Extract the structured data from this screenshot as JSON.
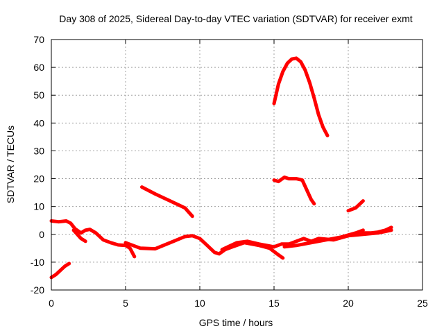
{
  "chart_data": {
    "type": "scatter",
    "title": "Day 308 of 2025, Sidereal Day-to-day VTEC variation (SDTVAR) for receiver exmt",
    "xlabel": "GPS time / hours",
    "ylabel": "SDTVAR / TECUs",
    "xlim": [
      0,
      25
    ],
    "ylim": [
      -20,
      70
    ],
    "xticks": [
      "0",
      "5",
      "10",
      "15",
      "20",
      "25"
    ],
    "yticks": [
      "-20",
      "-10",
      "0",
      "10",
      "20",
      "30",
      "40",
      "50",
      "60",
      "70"
    ],
    "grid": true,
    "marker_color": "#ff0000",
    "series": [
      {
        "name": "track-1",
        "x": [
          0,
          0.3,
          0.6,
          0.9,
          1.2
        ],
        "y": [
          -15.5,
          -14.5,
          -13,
          -11.5,
          -10.5
        ]
      },
      {
        "name": "track-2",
        "x": [
          0,
          0.5,
          1.0,
          1.3,
          1.6,
          2.0,
          2.3,
          2.6,
          3.0,
          3.5,
          4.0,
          4.5,
          5.0,
          5.3,
          5.6
        ],
        "y": [
          4.8,
          4.5,
          4.8,
          4.0,
          2.0,
          0.5,
          1.5,
          1.8,
          0.5,
          -2.0,
          -3.0,
          -3.8,
          -4.0,
          -5.0,
          -8.0
        ]
      },
      {
        "name": "track-3",
        "x": [
          1.5,
          2.0,
          2.3
        ],
        "y": [
          1.5,
          -1.5,
          -2.5
        ]
      },
      {
        "name": "track-4",
        "x": [
          5.0,
          6.0,
          7.0,
          8.0,
          9.0,
          9.5,
          10.0,
          10.5,
          11.0,
          11.3,
          11.7,
          12.2,
          13.0,
          14.0,
          14.7,
          15.2,
          15.6
        ],
        "y": [
          -3.0,
          -5.0,
          -5.2,
          -3.0,
          -0.8,
          -0.5,
          -1.5,
          -4.0,
          -6.5,
          -7.0,
          -5.5,
          -4.5,
          -3.0,
          -4.0,
          -5.0,
          -7.0,
          -8.5
        ]
      },
      {
        "name": "track-5",
        "x": [
          6.1,
          7.0,
          8.0,
          9.0,
          9.5
        ],
        "y": [
          17.0,
          14.5,
          12.0,
          9.5,
          6.5
        ]
      },
      {
        "name": "track-6",
        "x": [
          11.5,
          12.5,
          13.2,
          14.0,
          15.0,
          15.5,
          16.0,
          17.0,
          17.5,
          18.0,
          19.0,
          20.0,
          21.0,
          22.0,
          22.9
        ],
        "y": [
          -5.5,
          -3.0,
          -2.5,
          -3.5,
          -4.5,
          -3.5,
          -3.5,
          -1.5,
          -2.5,
          -1.5,
          -2.0,
          -0.5,
          0.0,
          0.5,
          1.5
        ]
      },
      {
        "name": "track-7",
        "x": [
          15.7,
          16.5,
          17.5,
          18.5,
          19.5,
          20.5,
          21.0
        ],
        "y": [
          -4.5,
          -4.0,
          -3.0,
          -2.0,
          -1.0,
          0.5,
          1.5
        ]
      },
      {
        "name": "track-8",
        "x": [
          21.0,
          21.5,
          22.0,
          22.5,
          22.9
        ],
        "y": [
          0.5,
          0.5,
          0.8,
          1.5,
          2.5
        ]
      },
      {
        "name": "track-9",
        "x": [
          15.0,
          15.3,
          15.6,
          15.9,
          16.2,
          16.5,
          16.8,
          17.1,
          17.4,
          17.7,
          18.0,
          18.3,
          18.6
        ],
        "y": [
          47.0,
          54.0,
          58.5,
          61.5,
          63.0,
          63.3,
          62.0,
          59.0,
          54.5,
          49.0,
          43.0,
          38.5,
          35.5
        ]
      },
      {
        "name": "track-10",
        "x": [
          15.0,
          15.3,
          15.7,
          16.0,
          16.5,
          16.9,
          17.2,
          17.5,
          17.7
        ],
        "y": [
          19.5,
          19.0,
          20.5,
          20.0,
          20.0,
          19.5,
          16.0,
          12.5,
          11.0
        ]
      },
      {
        "name": "track-11",
        "x": [
          20.0,
          20.5,
          21.0
        ],
        "y": [
          8.5,
          9.5,
          12.0
        ]
      }
    ]
  }
}
